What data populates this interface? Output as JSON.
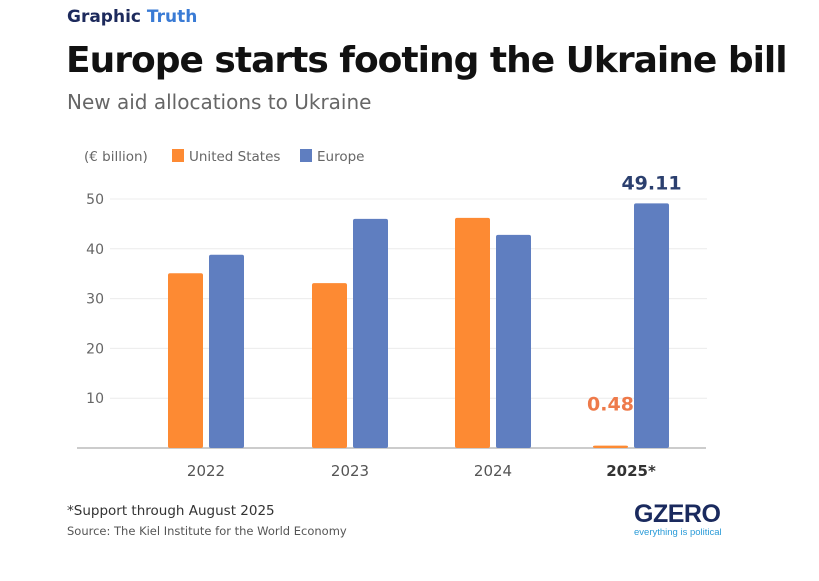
{
  "header": {
    "brand_part1": "Graphic",
    "brand_part2": "Truth",
    "title": "Europe starts footing the Ukraine bill",
    "subtitle": "New aid allocations to Ukraine"
  },
  "footer": {
    "note": "*Support through August 2025",
    "source": "Source: The Kiel Institute for the World Economy",
    "logo": "GZERO",
    "tagline": "everything is political"
  },
  "chart_data": {
    "type": "bar",
    "ylabel": "(€ billion)",
    "categories": [
      "2022",
      "2023",
      "2024",
      "2025*"
    ],
    "yticks": [
      10,
      20,
      30,
      40,
      50
    ],
    "ylim": [
      0,
      50
    ],
    "grid": true,
    "legend": "top-left",
    "series": [
      {
        "name": "United States",
        "color": "#fd8a33",
        "values": [
          35.1,
          33.1,
          46.2,
          0.48
        ]
      },
      {
        "name": "Europe",
        "color": "#5f7ec0",
        "values": [
          38.8,
          46.0,
          42.8,
          49.11
        ]
      }
    ],
    "data_labels": [
      {
        "series": "United States",
        "category": "2025*",
        "text": "0.48",
        "color": "#ee7a4a"
      },
      {
        "series": "Europe",
        "category": "2025*",
        "text": "49.11",
        "color": "#2b3f6e"
      }
    ]
  }
}
